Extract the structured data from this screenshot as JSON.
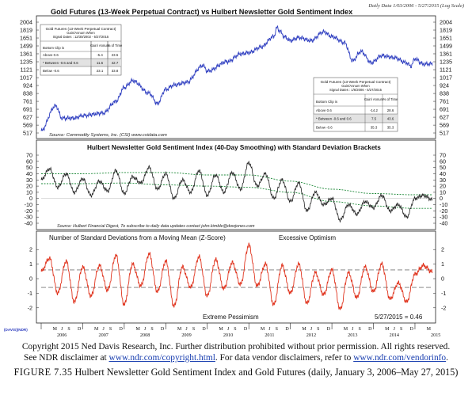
{
  "header": {
    "daily_data_note": "Daily Data 1/03/2006 - 5/27/2015 (Log Scale)",
    "ndr_logo": "(DAVIS)(NDR)"
  },
  "panel1": {
    "title": "Gold Futures (13-Week Perpetual Contract) vs Hulbert Newsletter Gold Sentiment Index",
    "source": "Source: Commodity Systems, Inc. (CSI) www.csidata.com",
    "y_ticks": [
      "2004",
      "1819",
      "1651",
      "1499",
      "1361",
      "1235",
      "1121",
      "1017",
      "924",
      "838",
      "761",
      "691",
      "627",
      "569",
      "517"
    ],
    "table_left": {
      "title": "Gold Futures (13-Week Perpetual Contract)",
      "subtitle": "Gain/Annum When",
      "signal_dates": "Signal Dates : 12/30/2002 - 5/27/2015",
      "col_headers": [
        "Bottom Clip is",
        "Gain/ Annum",
        "% of Time"
      ],
      "rows": [
        [
          "Above 0.6",
          "-5.4",
          "23.5"
        ],
        [
          "* Between -0.6 and 0.6",
          "11.6",
          "42.7"
        ],
        [
          "Below -0.6",
          "23.1",
          "33.8"
        ]
      ]
    },
    "table_right": {
      "title": "Gold Futures (13-Week Perpetual Contract)",
      "subtitle": "Gain/Annum When",
      "signal_dates": "Signal Dates : 1/6/2006 - 5/27/2015",
      "col_headers": [
        "Bottom Clip is",
        "Gain/ Annum",
        "% of Time"
      ],
      "rows": [
        [
          "Above 0.6",
          "-14.2",
          "28.6"
        ],
        [
          "* Between -0.6 and 0.6",
          "7.5",
          "43.6"
        ],
        [
          "Below -0.6",
          "35.3",
          "35.3"
        ]
      ]
    }
  },
  "panel2": {
    "title": "Hulbert Newsletter Gold Sentiment Index (40-Day Smoothing) with Standard Deviation Brackets",
    "source": "Source: Hulbert Financial Digest, To subscribe to daily data updates contact john.kimble@dowjones.com",
    "y_ticks": [
      "70",
      "60",
      "50",
      "40",
      "30",
      "20",
      "10",
      "0",
      "-10",
      "-20",
      "-30",
      "-40"
    ]
  },
  "panel3": {
    "title": "Number of Standard Deviations from a Moving Mean (Z-Score)",
    "optimism_label": "Excessive Optimism",
    "pessimism_label": "Extreme Pessimism",
    "last_value_label": "5/27/2015 = 0.46",
    "y_ticks": [
      "2",
      "1",
      "0",
      "-1",
      "-2"
    ]
  },
  "x_axis": {
    "month_letters": [
      "M",
      "J",
      "S",
      "D"
    ],
    "years": [
      "2006",
      "2007",
      "2008",
      "2009",
      "2010",
      "2011",
      "2012",
      "2013",
      "2014",
      "2015"
    ]
  },
  "footer": {
    "copyright": "Copyright 2015 Ned Davis Research, Inc. Further distribution prohibited without prior permission. All rights reserved.",
    "disclaimer_1": "See NDR disclaimer at ",
    "link_1": "www.ndr.com/copyright.html",
    "disclaimer_2": ". For data vendor disclaimers, refer to ",
    "link_2": "www.ndr.com/vendorinfo",
    "disclaimer_end": ".",
    "figure_number": "FIGURE 7.35",
    "figure_title": " Hulbert Newsletter Gold Sentiment Index and Gold Futures (daily, January 3, 2006–May 27, 2015)"
  },
  "colors": {
    "gold_line": "#2b3bbf",
    "sentiment_line": "#222222",
    "bracket_line": "#1f8a3a",
    "zscore_line": "#e0341e",
    "band_line": "#777777"
  },
  "chart_data": [
    {
      "type": "line",
      "title": "Gold Futures (13-Week Perpetual Contract) vs Hulbert Newsletter Gold Sentiment Index",
      "yscale": "log",
      "ylim": [
        517,
        2004
      ],
      "xlim": [
        2006.0,
        2015.42
      ],
      "series": [
        {
          "x": [
            2006.0,
            2006.35,
            2006.5,
            2006.8,
            2007.0,
            2007.5,
            2007.8,
            2008.0,
            2008.2,
            2008.6,
            2008.8,
            2009.0,
            2009.2,
            2009.5,
            2009.9,
            2010.0,
            2010.5,
            2010.8,
            2011.0,
            2011.3,
            2011.6,
            2011.68,
            2011.75,
            2011.85,
            2012.0,
            2012.2,
            2012.5,
            2012.8,
            2013.0,
            2013.3,
            2013.5,
            2013.7,
            2013.95,
            2014.2,
            2014.5,
            2014.8,
            2014.9,
            2015.0,
            2015.2,
            2015.42
          ],
          "y": [
            530,
            720,
            620,
            620,
            640,
            660,
            760,
            900,
            980,
            840,
            740,
            880,
            930,
            960,
            1180,
            1100,
            1240,
            1360,
            1380,
            1480,
            1680,
            1880,
            1790,
            1680,
            1600,
            1660,
            1600,
            1780,
            1680,
            1560,
            1250,
            1400,
            1220,
            1330,
            1300,
            1220,
            1170,
            1280,
            1200,
            1205
          ]
        }
      ]
    },
    {
      "type": "line",
      "title": "Hulbert Newsletter Gold Sentiment Index (40-Day Smoothing) with Standard Deviation Brackets",
      "ylim": [
        -40,
        70
      ],
      "xlim": [
        2006.0,
        2015.42
      ],
      "series": [
        {
          "x": [
            2006.0,
            2006.2,
            2006.4,
            2006.6,
            2006.8,
            2007.0,
            2007.2,
            2007.4,
            2007.6,
            2007.8,
            2008.0,
            2008.2,
            2008.4,
            2008.6,
            2008.8,
            2009.0,
            2009.2,
            2009.4,
            2009.6,
            2009.8,
            2010.0,
            2010.2,
            2010.4,
            2010.6,
            2010.8,
            2011.0,
            2011.2,
            2011.4,
            2011.6,
            2011.8,
            2012.0,
            2012.2,
            2012.4,
            2012.6,
            2012.8,
            2013.0,
            2013.2,
            2013.4,
            2013.6,
            2013.8,
            2014.0,
            2014.2,
            2014.4,
            2014.6,
            2014.8,
            2015.0,
            2015.2,
            2015.42
          ],
          "y": [
            30,
            48,
            18,
            40,
            10,
            32,
            5,
            28,
            12,
            45,
            8,
            35,
            25,
            50,
            15,
            40,
            0,
            30,
            10,
            45,
            5,
            38,
            10,
            42,
            15,
            58,
            20,
            40,
            0,
            30,
            -5,
            25,
            -20,
            10,
            -10,
            0,
            -35,
            -10,
            -25,
            -5,
            -15,
            5,
            -20,
            -10,
            -30,
            0,
            5,
            -2
          ]
        },
        {
          "x": [
            2006.0,
            2007.0,
            2008.0,
            2009.0,
            2010.0,
            2011.0,
            2012.0,
            2013.0,
            2014.0,
            2015.0,
            2015.42
          ],
          "y": [
            40,
            40,
            42,
            42,
            38,
            38,
            28,
            15,
            8,
            6,
            6
          ]
        },
        {
          "x": [
            2006.0,
            2007.0,
            2008.0,
            2009.0,
            2010.0,
            2011.0,
            2012.0,
            2013.0,
            2014.0,
            2015.0,
            2015.42
          ],
          "y": [
            24,
            24,
            25,
            22,
            20,
            18,
            10,
            -5,
            -12,
            -16,
            -16
          ]
        }
      ]
    },
    {
      "type": "line",
      "title": "Number of Standard Deviations from a Moving Mean (Z-Score)",
      "ylim": [
        -2.5,
        2.5
      ],
      "xlim": [
        2006.0,
        2015.42
      ],
      "reference_lines": [
        0.6,
        -0.6
      ],
      "series": [
        {
          "x": [
            2006.0,
            2006.2,
            2006.4,
            2006.6,
            2006.8,
            2007.0,
            2007.2,
            2007.4,
            2007.6,
            2007.8,
            2008.0,
            2008.2,
            2008.4,
            2008.6,
            2008.8,
            2009.0,
            2009.2,
            2009.4,
            2009.6,
            2009.8,
            2010.0,
            2010.2,
            2010.4,
            2010.6,
            2010.8,
            2011.0,
            2011.2,
            2011.4,
            2011.6,
            2011.8,
            2012.0,
            2012.2,
            2012.4,
            2012.6,
            2012.8,
            2013.0,
            2013.2,
            2013.4,
            2013.6,
            2013.8,
            2014.0,
            2014.2,
            2014.4,
            2014.6,
            2014.8,
            2015.0,
            2015.2,
            2015.42
          ],
          "y": [
            0.5,
            1.4,
            -1.0,
            1.2,
            -1.6,
            0.8,
            -1.2,
            0.9,
            -0.8,
            1.6,
            -1.8,
            1.0,
            -0.5,
            1.7,
            -0.9,
            1.2,
            -1.9,
            0.8,
            -0.6,
            1.5,
            -1.2,
            1.3,
            -0.7,
            1.1,
            -0.4,
            2.3,
            -0.5,
            1.0,
            -1.8,
            0.9,
            -1.0,
            1.0,
            -1.7,
            0.4,
            -1.1,
            0.6,
            -2.1,
            0.4,
            -1.3,
            0.8,
            -0.9,
            1.0,
            -1.4,
            -0.3,
            -1.6,
            0.3,
            0.9,
            0.46
          ]
        }
      ]
    }
  ]
}
